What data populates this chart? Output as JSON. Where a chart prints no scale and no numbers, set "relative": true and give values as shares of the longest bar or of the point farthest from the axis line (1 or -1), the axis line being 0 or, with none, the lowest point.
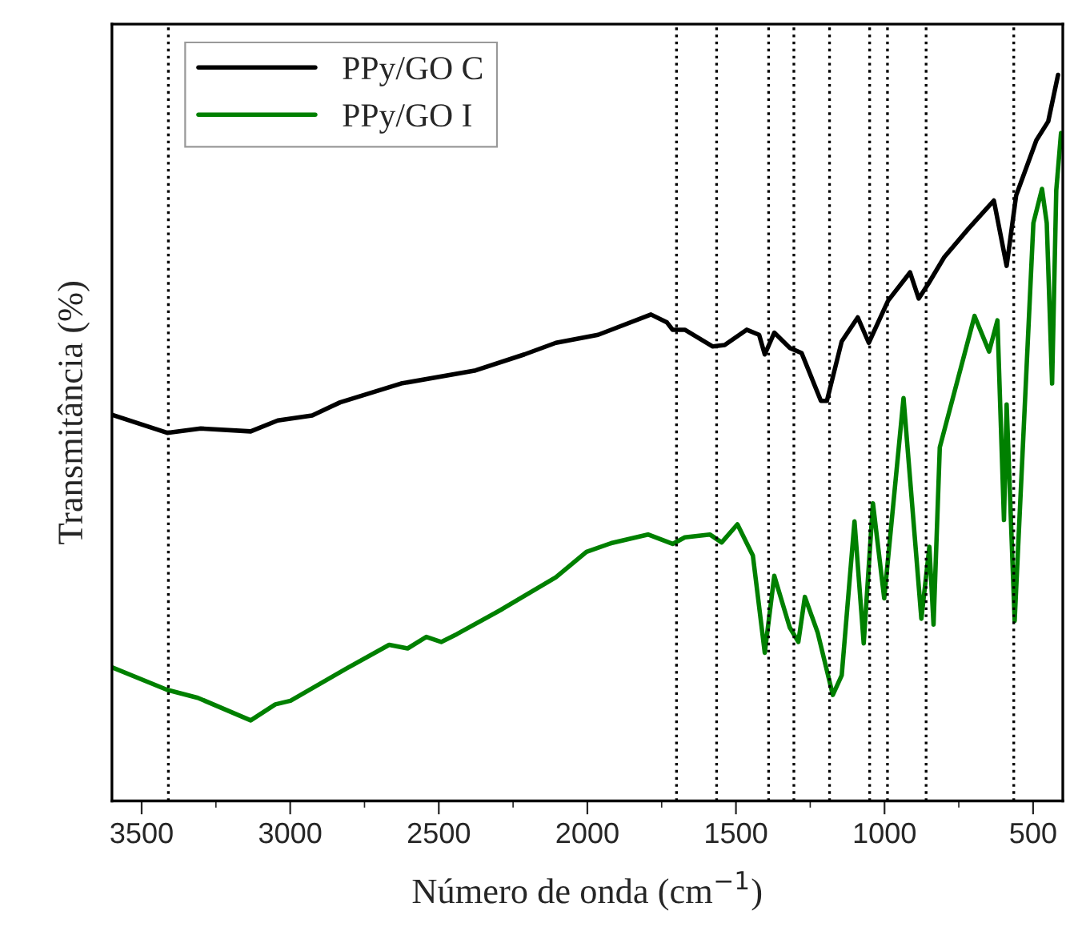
{
  "chart_data": {
    "type": "line",
    "relative": true,
    "xlabel": "Número de onda (cm$^{−1}$)",
    "ylabel": "Transmitância (%)",
    "xlim": [
      3600,
      400
    ],
    "xticks": [
      3500,
      {
        "value": 3250,
        "label": null
      },
      3000,
      {
        "value": 2750,
        "label": null
      },
      2500,
      {
        "value": 2250,
        "label": null
      },
      2000,
      {
        "value": 1750,
        "label": null
      },
      1500,
      {
        "value": 1250,
        "label": null
      },
      1000,
      {
        "value": 750,
        "label": null
      },
      500
    ],
    "tick_labels": "x",
    "grid": false,
    "legend": "top left",
    "line_style": "solid",
    "marker": "none",
    "series": [
      {
        "name": "PPy/GO C",
        "color": "#000000",
        "x": [
          3600,
          3414,
          3301,
          3133,
          3042,
          2926,
          2832,
          2627,
          2376,
          2212,
          2106,
          1964,
          1786,
          1732,
          1713,
          1672,
          1578,
          1538,
          1464,
          1422,
          1403,
          1371,
          1319,
          1279,
          1214,
          1194,
          1144,
          1090,
          1053,
          988,
          914,
          885,
          853,
          799,
          718,
          632,
          589,
          557,
          489,
          449,
          416
        ],
        "values": [
          0.532,
          0.507,
          0.513,
          0.509,
          0.524,
          0.531,
          0.549,
          0.575,
          0.593,
          0.615,
          0.631,
          0.642,
          0.67,
          0.659,
          0.649,
          0.649,
          0.626,
          0.628,
          0.649,
          0.642,
          0.615,
          0.645,
          0.624,
          0.617,
          0.551,
          0.551,
          0.633,
          0.666,
          0.631,
          0.689,
          0.728,
          0.692,
          0.712,
          0.749,
          0.788,
          0.827,
          0.737,
          0.834,
          0.91,
          0.936,
          1.0
        ]
      },
      {
        "name": "PPy/GO I",
        "color": "#008000",
        "x": [
          3600,
          3414,
          3311,
          3133,
          3050,
          2999,
          2812,
          2667,
          2605,
          2542,
          2492,
          2438,
          2292,
          2106,
          2003,
          1920,
          1796,
          1713,
          1672,
          1588,
          1548,
          1495,
          1443,
          1403,
          1371,
          1319,
          1290,
          1268,
          1225,
          1174,
          1144,
          1101,
          1070,
          1039,
          1001,
          936,
          876,
          849,
          835,
          814,
          697,
          648,
          620,
          598,
          589,
          562,
          499,
          470,
          454,
          436,
          422,
          406
        ],
        "values": [
          0.184,
          0.153,
          0.142,
          0.111,
          0.133,
          0.138,
          0.182,
          0.215,
          0.21,
          0.226,
          0.219,
          0.23,
          0.263,
          0.308,
          0.343,
          0.355,
          0.367,
          0.354,
          0.363,
          0.367,
          0.356,
          0.381,
          0.338,
          0.204,
          0.31,
          0.239,
          0.219,
          0.281,
          0.232,
          0.146,
          0.173,
          0.385,
          0.217,
          0.41,
          0.279,
          0.555,
          0.251,
          0.35,
          0.243,
          0.487,
          0.668,
          0.619,
          0.662,
          0.387,
          0.546,
          0.248,
          0.796,
          0.843,
          0.796,
          0.575,
          0.841,
          0.92
        ]
      }
    ],
    "ref_lines": [
      {
        "axis": "x",
        "value": 3410,
        "color": "#000000",
        "line_style": "dotted"
      },
      {
        "axis": "x",
        "value": 1700,
        "color": "#000000",
        "line_style": "dotted"
      },
      {
        "axis": "x",
        "value": 1565,
        "color": "#000000",
        "line_style": "dotted"
      },
      {
        "axis": "x",
        "value": 1390,
        "color": "#000000",
        "line_style": "dotted"
      },
      {
        "axis": "x",
        "value": 1305,
        "color": "#000000",
        "line_style": "dotted"
      },
      {
        "axis": "x",
        "value": 1185,
        "color": "#000000",
        "line_style": "dotted"
      },
      {
        "axis": "x",
        "value": 1050,
        "color": "#000000",
        "line_style": "dotted"
      },
      {
        "axis": "x",
        "value": 990,
        "color": "#000000",
        "line_style": "dotted"
      },
      {
        "axis": "x",
        "value": 860,
        "color": "#000000",
        "line_style": "dotted"
      },
      {
        "axis": "x",
        "value": 565,
        "color": "#000000",
        "line_style": "dotted"
      }
    ]
  }
}
